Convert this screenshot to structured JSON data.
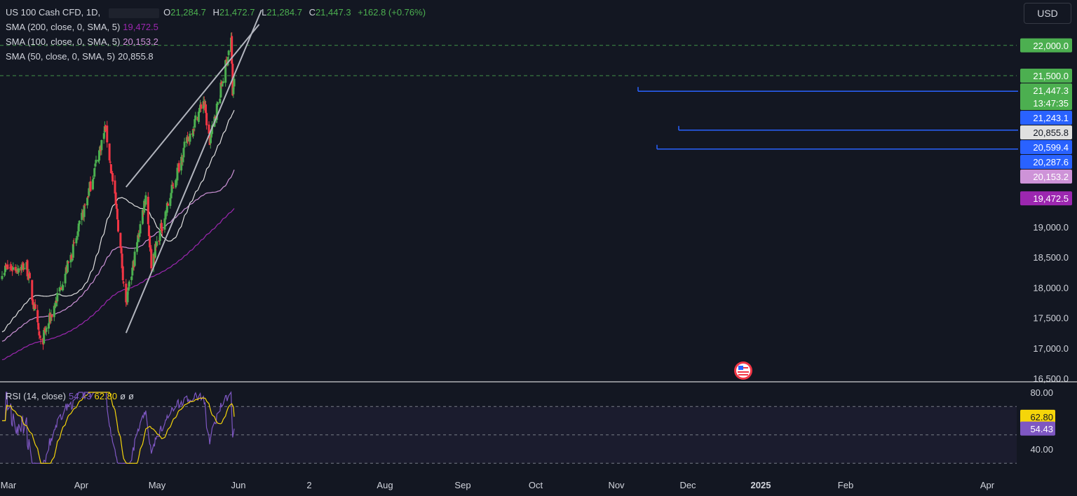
{
  "legend": {
    "symbol": "US 100 Cash CFD, 1D,",
    "open_label": "O",
    "open": "21,284.7",
    "high_label": "H",
    "high": "21,472.7",
    "low_label": "L",
    "low": "21,284.7",
    "close_label": "C",
    "close": "21,447.3",
    "change": "+162.8 (+0.76%)",
    "sma200_label": "SMA (200, close, 0, SMA, 5)",
    "sma200_value": "19,472.5",
    "sma100_label": "SMA (100, close, 0, SMA, 5)",
    "sma100_value": "20,153.2",
    "sma50_label": "SMA (50, close, 0, SMA, 5)",
    "sma50_value": "20,855.8",
    "rsi_label": "RSI (14, close)",
    "rsi_value": "54.43",
    "rsi_ma_value": "62.80",
    "rsi_extra1": "ø",
    "rsi_extra2": "ø"
  },
  "currency_button": "USD",
  "colors": {
    "background": "#131722",
    "up": "#4caf50",
    "down": "#f23645",
    "sma50": "#e0e0e0",
    "sma100": "#ce93d8",
    "sma200": "#9c27b0",
    "support_line": "#2962ff",
    "rsi": "#7e57c2",
    "rsi_ma": "#f5d50a",
    "last_price_tag": "#4caf50"
  },
  "chart_data": {
    "type": "candlestick",
    "symbol": "US 100 Cash CFD",
    "interval": "1D",
    "x_axis_labels": [
      "Mar",
      "Apr",
      "May",
      "Jun",
      "2",
      "Aug",
      "Sep",
      "Oct",
      "Nov",
      "Dec",
      "2025",
      "Feb",
      "Apr"
    ],
    "y_axis_ticks": [
      16500,
      17000,
      17500,
      18000,
      18500,
      19000,
      21500
    ],
    "y_axis_tick_labels": [
      "16,500.0",
      "17,000.0",
      "17,500.0",
      "18,000.0",
      "18,500.0",
      "19,000.0",
      "21,500.0"
    ],
    "ylim": [
      16500,
      22200
    ],
    "grid": false,
    "price_tags": [
      {
        "label": "22,000.0",
        "value": 22000,
        "color": "#4caf50"
      },
      {
        "label": "21,500.0",
        "value": 21500,
        "color": "#4caf50"
      },
      {
        "label": "21,447.3",
        "value": 21447.3,
        "color": "#4caf50",
        "sub": "13:47:35"
      },
      {
        "label": "21,243.1",
        "value": 21243.1,
        "color": "#2962ff"
      },
      {
        "label": "20,855.8",
        "value": 20855.8,
        "color": "#e0e0e0"
      },
      {
        "label": "20,599.4",
        "value": 20599.4,
        "color": "#2962ff"
      },
      {
        "label": "20,287.6",
        "value": 20287.6,
        "color": "#2962ff"
      },
      {
        "label": "20,153.2",
        "value": 20153.2,
        "color": "#ce93d8"
      },
      {
        "label": "19,472.5",
        "value": 19472.5,
        "color": "#9c27b0"
      }
    ],
    "horizontal_levels": [
      21243.1,
      20599.4,
      20287.6
    ],
    "dashed_levels": [
      22000,
      21500
    ],
    "wedge_lines": [
      {
        "from": [
          "2024-08-05",
          19660
        ],
        "to": [
          "2024-12-16",
          21780
        ]
      },
      {
        "from": [
          "2024-08-05",
          17250
        ],
        "to": [
          "2024-12-19",
          21480
        ]
      }
    ],
    "ohlc_key_points": [
      {
        "date": "2024-03-01",
        "close": 18300
      },
      {
        "date": "2024-04-01",
        "close": 18350
      },
      {
        "date": "2024-04-19",
        "close": 17050
      },
      {
        "date": "2024-05-01",
        "close": 17500
      },
      {
        "date": "2024-06-01",
        "close": 18700
      },
      {
        "date": "2024-07-10",
        "close": 20650
      },
      {
        "date": "2024-07-25",
        "close": 19150
      },
      {
        "date": "2024-08-05",
        "close": 17700
      },
      {
        "date": "2024-08-30",
        "close": 19550
      },
      {
        "date": "2024-09-06",
        "close": 18400
      },
      {
        "date": "2024-10-15",
        "close": 20200
      },
      {
        "date": "2024-11-11",
        "close": 21100
      },
      {
        "date": "2024-11-19",
        "close": 20400
      },
      {
        "date": "2024-12-16",
        "close": 22100
      },
      {
        "date": "2024-12-18",
        "close": 21200
      },
      {
        "date": "2024-12-20",
        "close": 21447.3
      }
    ],
    "series": [
      {
        "name": "SMA (50, close, 0, SMA, 5)",
        "last": 20855.8
      },
      {
        "name": "SMA (100, close, 0, SMA, 5)",
        "last": 20153.2
      },
      {
        "name": "SMA (200, close, 0, SMA, 5)",
        "last": 19472.5
      }
    ],
    "rsi": {
      "name": "RSI (14, close)",
      "last": 54.43,
      "ma_last": 62.8,
      "ylim": [
        30,
        80
      ],
      "tick_labels": [
        "80.00",
        "40.00"
      ],
      "ticks": [
        80,
        40
      ],
      "levels": [
        70,
        50,
        30
      ]
    }
  }
}
